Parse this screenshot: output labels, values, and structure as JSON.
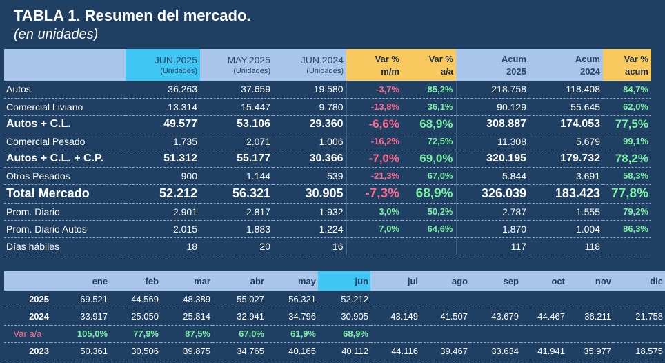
{
  "title": "TABLA 1. Resumen del mercado.",
  "subtitle": "(en unidades)",
  "summary": {
    "headers": {
      "jun2025": {
        "month": "JUN.2025",
        "unit": "(Unidades)"
      },
      "may2025": {
        "month": "MAY.2025",
        "unit": "(Unidades)"
      },
      "jun2024": {
        "month": "JUN.2024",
        "unit": "(Unidades)"
      },
      "var_mm": {
        "l1": "Var %",
        "l2": "m/m"
      },
      "var_aa": {
        "l1": "Var %",
        "l2": "a/a"
      },
      "acum2025": {
        "l1": "Acum",
        "l2": "2025"
      },
      "acum2024": {
        "l1": "Acum",
        "l2": "2024"
      },
      "var_acum": {
        "l1": "Var %",
        "l2": "acum"
      }
    },
    "rows": [
      {
        "label": "Autos",
        "jun2025": "36.263",
        "may2025": "37.659",
        "jun2024": "19.580",
        "var_mm": "-3,7%",
        "var_aa": "85,2%",
        "acum2025": "218.758",
        "acum2024": "118.408",
        "var_acum": "84,7%"
      },
      {
        "label": "Comercial Liviano",
        "jun2025": "13.314",
        "may2025": "15.447",
        "jun2024": "9.780",
        "var_mm": "-13,8%",
        "var_aa": "36,1%",
        "acum2025": "90.129",
        "acum2024": "55.645",
        "var_acum": "62,0%"
      },
      {
        "label": "Autos + C.L.",
        "jun2025": "49.577",
        "may2025": "53.106",
        "jun2024": "29.360",
        "var_mm": "-6,6%",
        "var_aa": "68,9%",
        "acum2025": "308.887",
        "acum2024": "174.053",
        "var_acum": "77,5%"
      },
      {
        "label": "Comercial Pesado",
        "jun2025": "1.735",
        "may2025": "2.071",
        "jun2024": "1.006",
        "var_mm": "-16,2%",
        "var_aa": "72,5%",
        "acum2025": "11.308",
        "acum2024": "5.679",
        "var_acum": "99,1%"
      },
      {
        "label": "Autos + C.L. + C.P.",
        "jun2025": "51.312",
        "may2025": "55.177",
        "jun2024": "30.366",
        "var_mm": "-7,0%",
        "var_aa": "69,0%",
        "acum2025": "320.195",
        "acum2024": "179.732",
        "var_acum": "78,2%"
      },
      {
        "label": "Otros Pesados",
        "jun2025": "900",
        "may2025": "1.144",
        "jun2024": "539",
        "var_mm": "-21,3%",
        "var_aa": "67,0%",
        "acum2025": "5.844",
        "acum2024": "3.691",
        "var_acum": "58,3%"
      },
      {
        "label": "Total Mercado",
        "jun2025": "52.212",
        "may2025": "56.321",
        "jun2024": "30.905",
        "var_mm": "-7,3%",
        "var_aa": "68,9%",
        "acum2025": "326.039",
        "acum2024": "183.423",
        "var_acum": "77,8%"
      },
      {
        "label": "Prom. Diario",
        "jun2025": "2.901",
        "may2025": "2.817",
        "jun2024": "1.932",
        "var_mm": "3,0%",
        "var_aa": "50,2%",
        "acum2025": "2.787",
        "acum2024": "1.555",
        "var_acum": "79,2%"
      },
      {
        "label": "Prom. Diario Autos",
        "jun2025": "2.015",
        "may2025": "1.883",
        "jun2024": "1.224",
        "var_mm": "7,0%",
        "var_aa": "64,6%",
        "acum2025": "1.870",
        "acum2024": "1.004",
        "var_acum": "86,3%"
      },
      {
        "label": "Días hábiles",
        "jun2025": "18",
        "may2025": "20",
        "jun2024": "16",
        "var_mm": "",
        "var_aa": "",
        "acum2025": "117",
        "acum2024": "118",
        "var_acum": ""
      }
    ]
  },
  "monthly": {
    "months": [
      "ene",
      "feb",
      "mar",
      "abr",
      "may",
      "jun",
      "jul",
      "ago",
      "sep",
      "oct",
      "nov",
      "dic"
    ],
    "rows": [
      {
        "label": "2025",
        "values": [
          "69.521",
          "44.569",
          "48.389",
          "55.027",
          "56.321",
          "52.212",
          "",
          "",
          "",
          "",
          "",
          ""
        ]
      },
      {
        "label": "2024",
        "values": [
          "33.917",
          "25.050",
          "25.814",
          "32.941",
          "34.796",
          "30.905",
          "43.149",
          "41.507",
          "43.679",
          "44.467",
          "36.211",
          "21.758"
        ]
      },
      {
        "label": "Var a/a",
        "values": [
          "105,0%",
          "77,9%",
          "87,5%",
          "67,0%",
          "61,9%",
          "68,9%",
          "",
          "",
          "",
          "",
          "",
          ""
        ]
      },
      {
        "label": "2023",
        "values": [
          "50.361",
          "30.506",
          "39.875",
          "34.765",
          "40.165",
          "40.112",
          "44.116",
          "39.467",
          "33.634",
          "41.941",
          "35.977",
          "18.575"
        ]
      }
    ]
  },
  "colors": {
    "background": "#1f3f63",
    "header": "#a9c5ea",
    "highlight": "#3fc6f2",
    "var_header": "#f7c95f",
    "positive": "#7cf0a4",
    "negative": "#ff6b8e"
  }
}
